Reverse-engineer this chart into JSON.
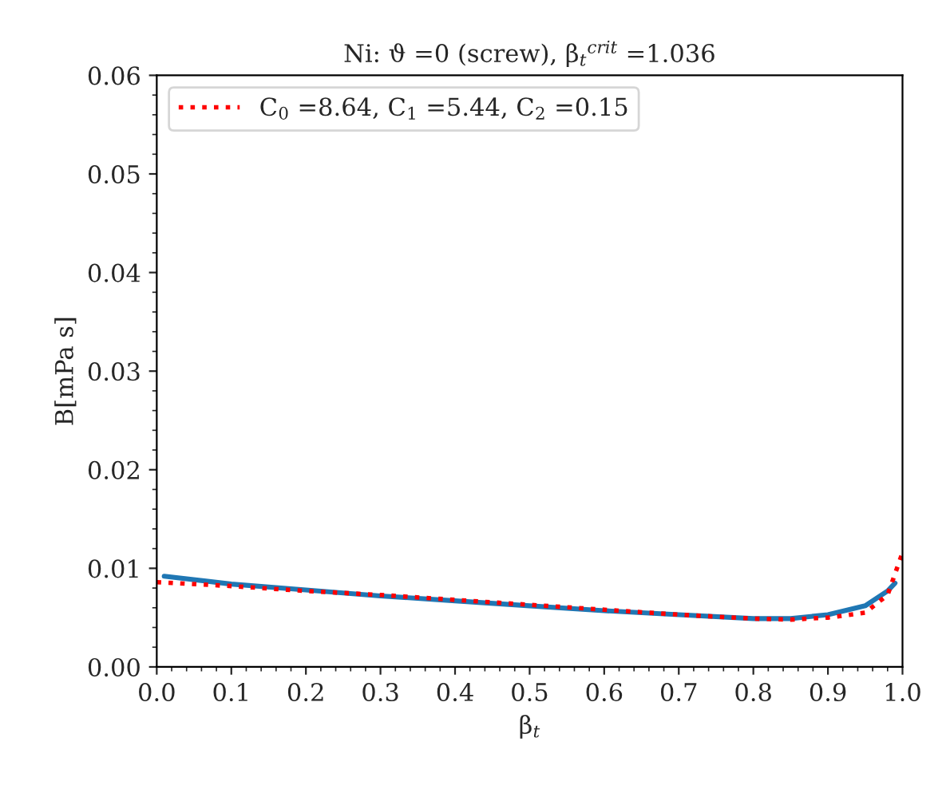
{
  "chart_data": {
    "type": "line",
    "title": "Ni: ϑ =0 (screw), β$_{t}$$^{crit}$ =1.036",
    "xlabel": "β$_{t}$",
    "ylabel": "B[mPa s]",
    "series": [
      {
        "color": "#1f77b4",
        "line_style": "solid",
        "x": [
          0.01,
          0.1,
          0.2,
          0.3,
          0.4,
          0.5,
          0.6,
          0.7,
          0.8,
          0.85,
          0.9,
          0.95,
          0.98,
          0.99
        ],
        "values": [
          0.0092,
          0.0084,
          0.0078,
          0.0072,
          0.0067,
          0.0062,
          0.0057,
          0.0053,
          0.0049,
          0.0049,
          0.0053,
          0.0062,
          0.0077,
          0.0085
        ]
      },
      {
        "name": "C$_{0}$ =8.64, C$_{1}$ =5.44, C$_{2}$ =0.15",
        "color": "#ff0000",
        "line_style": "dotted",
        "x": [
          0,
          0.1,
          0.2,
          0.3,
          0.4,
          0.5,
          0.6,
          0.7,
          0.8,
          0.85,
          0.9,
          0.95,
          0.98,
          1.0
        ],
        "values": [
          0.0086,
          0.0082,
          0.0077,
          0.0073,
          0.0068,
          0.0063,
          0.0058,
          0.0053,
          0.0049,
          0.0048,
          0.005,
          0.0055,
          0.0073,
          0.0116
        ]
      }
    ],
    "xlim": [
      0,
      1
    ],
    "xticks": [
      {
        "value": 0,
        "label": "0.0"
      },
      0.1,
      0.2,
      0.3,
      0.4,
      0.5,
      0.6,
      0.7,
      0.8,
      0.9,
      {
        "value": 1,
        "label": "1.0"
      }
    ],
    "ylim": [
      0,
      0.06
    ],
    "yticks": [
      {
        "value": 0,
        "label": "0.00"
      },
      {
        "value": 0.01,
        "label": "0.01"
      },
      {
        "value": 0.02,
        "label": "0.02"
      },
      {
        "value": 0.03,
        "label": "0.03"
      },
      {
        "value": 0.04,
        "label": "0.04"
      },
      {
        "value": 0.05,
        "label": "0.05"
      },
      {
        "value": 0.06,
        "label": "0.06"
      }
    ],
    "legend": "top left",
    "grid": false,
    "marker": "none"
  }
}
